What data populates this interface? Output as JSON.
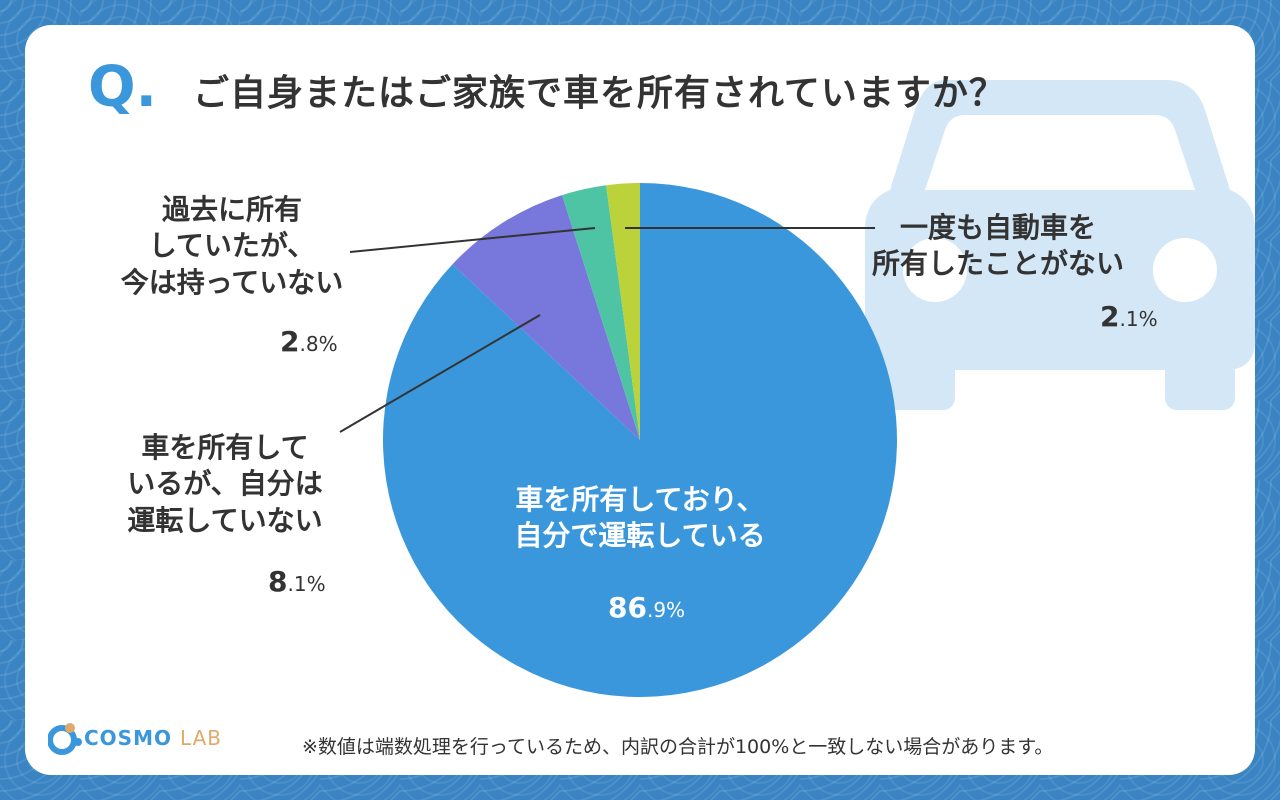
{
  "question": {
    "prefix": "Q.",
    "text": "ご自身またはご家族で車を所有されていますか？"
  },
  "chart_data": {
    "type": "pie",
    "start": "12 o'clock",
    "direction": "clockwise",
    "slices": [
      {
        "label": "車を所有しており、自分で運転している",
        "lines": [
          "車を所有しており、",
          "自分で運転している"
        ],
        "value": 86.9,
        "pct_int": "86",
        "pct_dec": ".9%",
        "color": "#3a97db"
      },
      {
        "label": "車を所有しているが、自分は運転していない",
        "lines": [
          "車を所有して",
          "いるが、自分は",
          "運転していない"
        ],
        "value": 8.1,
        "pct_int": "8",
        "pct_dec": ".1%",
        "color": "#7877db"
      },
      {
        "label": "過去に所有していたが、今は持っていない",
        "lines": [
          "過去に所有",
          "していたが、",
          "今は持っていない"
        ],
        "value": 2.8,
        "pct_int": "2",
        "pct_dec": ".8%",
        "color": "#4ec4a5"
      },
      {
        "label": "一度も自動車を所有したことがない",
        "lines": [
          "一度も自動車を",
          "所有したことがない"
        ],
        "value": 2.1,
        "pct_int": "2",
        "pct_dec": ".1%",
        "color": "#bcd23a"
      }
    ]
  },
  "logo": {
    "brand": "COSMO",
    "suffix": "LAB"
  },
  "footnote": "※数値は端数処理を行っているため、内訳の合計が100%と一致しない場合があります。"
}
